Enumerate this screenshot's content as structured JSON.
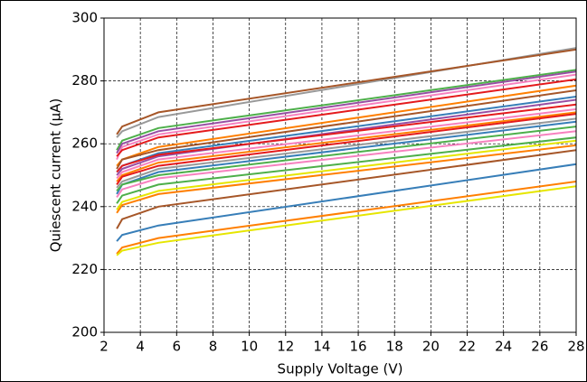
{
  "chart_data": {
    "type": "line",
    "xlabel": "Supply Voltage (V)",
    "ylabel": "Quiescent current (µA)",
    "x": [
      2.7,
      3,
      5,
      28
    ],
    "xlim": [
      2,
      28
    ],
    "xticks": [
      2,
      4,
      6,
      8,
      10,
      12,
      14,
      16,
      18,
      20,
      22,
      24,
      26,
      28
    ],
    "ylim": [
      200,
      300
    ],
    "yticks": [
      200,
      220,
      240,
      260,
      280,
      300
    ],
    "grid": true,
    "series": [
      {
        "color": "#999999",
        "values": [
          262,
          264,
          268.5,
          290.5
        ]
      },
      {
        "color": "#a65628",
        "values": [
          263,
          265.5,
          270,
          290
        ]
      },
      {
        "color": "#4daf4a",
        "values": [
          258,
          261,
          265,
          283.5
        ]
      },
      {
        "color": "#984ea3",
        "values": [
          257,
          260,
          264,
          283
        ]
      },
      {
        "color": "#f781bf",
        "values": [
          255,
          259,
          263,
          282
        ]
      },
      {
        "color": "#e41a1c",
        "values": [
          256,
          258,
          262,
          280.5
        ]
      },
      {
        "color": "#ff7f00",
        "values": [
          253,
          255,
          259,
          278.5
        ]
      },
      {
        "color": "#a65628",
        "values": [
          252,
          255,
          258,
          277
        ]
      },
      {
        "color": "#377eb8",
        "values": [
          251,
          253,
          257,
          275
        ]
      },
      {
        "color": "#984ea3",
        "values": [
          250,
          252,
          256,
          274
        ]
      },
      {
        "color": "#e41a1c",
        "values": [
          251,
          253,
          256.5,
          272.5
        ]
      },
      {
        "color": "#f781bf",
        "values": [
          249,
          251,
          255,
          271
        ]
      },
      {
        "color": "#ff7f00",
        "values": [
          248,
          250,
          254,
          270
        ]
      },
      {
        "color": "#e41a1c",
        "values": [
          247,
          249.5,
          253,
          269.5
        ]
      },
      {
        "color": "#999999",
        "values": [
          246,
          248,
          252,
          268
        ]
      },
      {
        "color": "#377eb8",
        "values": [
          244,
          247,
          251,
          267
        ]
      },
      {
        "color": "#4daf4a",
        "values": [
          245,
          247,
          250,
          265.5
        ]
      },
      {
        "color": "#f781bf",
        "values": [
          243,
          245.5,
          249,
          264
        ]
      },
      {
        "color": "#4daf4a",
        "values": [
          241,
          243.5,
          247,
          262
        ]
      },
      {
        "color": "#e6e600",
        "values": [
          239,
          241.5,
          245,
          261
        ]
      },
      {
        "color": "#ff7f00",
        "values": [
          238,
          240.5,
          244,
          259.5
        ]
      },
      {
        "color": "#a65628",
        "values": [
          233,
          236,
          240,
          258
        ]
      },
      {
        "color": "#377eb8",
        "values": [
          229,
          231,
          234,
          253.5
        ]
      },
      {
        "color": "#ff7f00",
        "values": [
          225,
          227,
          230,
          248
        ]
      },
      {
        "color": "#e6e600",
        "values": [
          224.5,
          226,
          228.5,
          246.5
        ]
      }
    ]
  }
}
